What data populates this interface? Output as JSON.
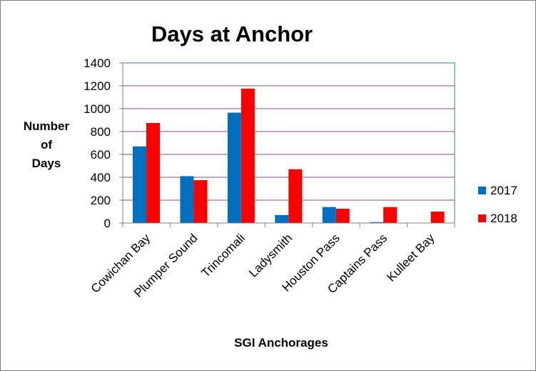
{
  "chart_data": {
    "type": "bar",
    "title": "Days at Anchor",
    "xlabel": "SGI Anchorages",
    "ylabel_lines": [
      "Number",
      "of",
      "Days"
    ],
    "categories": [
      "Cowichan Bay",
      "Plumper Sound",
      "Trincomali",
      "Ladysmith",
      "Houston Pass",
      "Captains Pass",
      "Kulleet Bay"
    ],
    "series": [
      {
        "name": "2017",
        "color": "#0070c0",
        "values": [
          670,
          410,
          965,
          70,
          140,
          8,
          0
        ]
      },
      {
        "name": "2018",
        "color": "#ff0000",
        "values": [
          875,
          375,
          1175,
          470,
          125,
          140,
          100
        ]
      }
    ],
    "ylim": [
      0,
      1400
    ],
    "yticks": [
      0,
      200,
      400,
      600,
      800,
      1000,
      1200,
      1400
    ],
    "gridlines": true,
    "gridline_color": "#8b4a8b",
    "plot_border_color": "#2e8b9a",
    "legend_position": "right"
  }
}
